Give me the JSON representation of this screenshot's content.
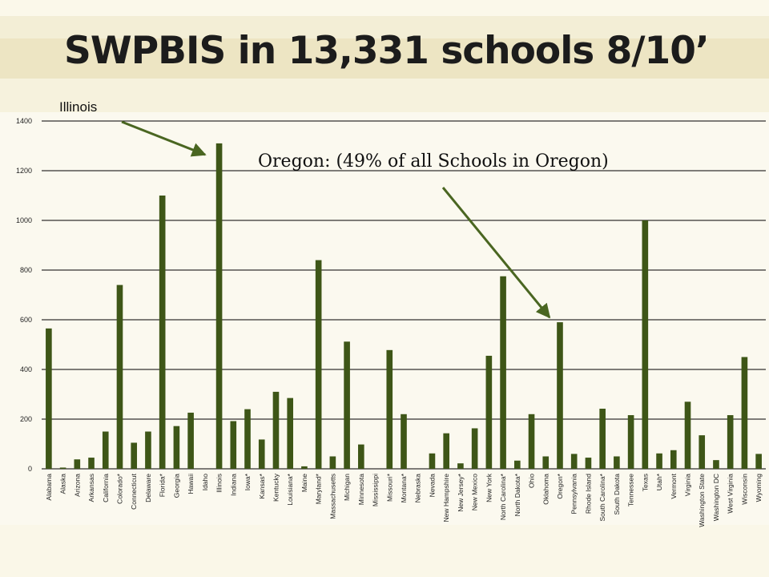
{
  "slide": {
    "title": "SWPBIS in 13,331 schools 8/10’"
  },
  "colors": {
    "bar": "#3e5617",
    "arrow": "#4a6621",
    "grid": "#000000",
    "background": "#f6f2dd"
  },
  "annotations": {
    "illinois": "Illinois",
    "oregon": "Oregon:  (49% of all Schools in Oregon)"
  },
  "chart_data": {
    "type": "bar",
    "title": "",
    "xlabel": "",
    "ylabel": "",
    "ylim": [
      0,
      1400
    ],
    "yticks": [
      0,
      200,
      400,
      600,
      800,
      1000,
      1200,
      1400
    ],
    "grid": true,
    "legend": "none",
    "categories": [
      "Alabama",
      "Alaska",
      "Arizona",
      "Arkansas",
      "California",
      "Colorado*",
      "Connecticut",
      "Delaware",
      "Florida*",
      "Georgia",
      "Hawaii",
      "Idaho",
      "Illinois",
      "Indiana",
      "Iowa*",
      "Kansas*",
      "Kentucky",
      "Louisiana*",
      "Maine",
      "Maryland*",
      "Massachusetts",
      "Michigan",
      "Minnesota",
      "Mississippi",
      "Missouri*",
      "Montana*",
      "Nebraska",
      "Nevada",
      "New Hampshire",
      "New Jersey*",
      "New Mexico",
      "New York",
      "North Carolina*",
      "North Dakota*",
      "Ohio",
      "Oklahoma",
      "Oregon*",
      "Pennsylvania",
      "Rhode Island",
      "South Carolina*",
      "South Dakota",
      "Tennessee",
      "Texas",
      "Utah*",
      "Vermont",
      "Virginia",
      "Washington State",
      "Washington DC",
      "West Virginia",
      "Wisconsin",
      "Wyoming"
    ],
    "values": [
      565,
      5,
      38,
      45,
      150,
      740,
      105,
      150,
      1100,
      172,
      226,
      0,
      1310,
      192,
      240,
      118,
      310,
      285,
      10,
      840,
      50,
      512,
      98,
      0,
      478,
      220,
      0,
      62,
      143,
      22,
      163,
      455,
      775,
      33,
      220,
      50,
      590,
      60,
      45,
      242,
      50,
      216,
      1000,
      62,
      75,
      270,
      135,
      35,
      216,
      450,
      60
    ]
  }
}
